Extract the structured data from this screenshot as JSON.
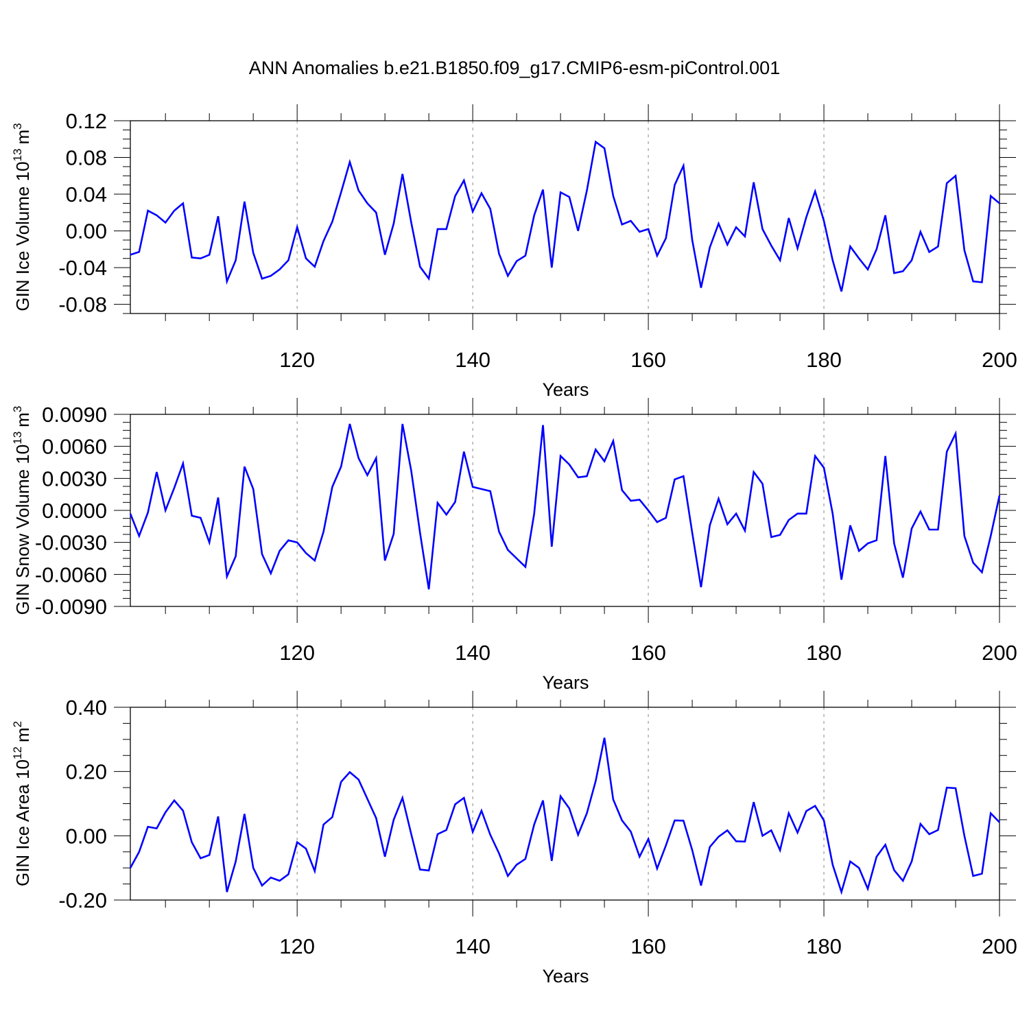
{
  "figure": {
    "title": "ANN Anomalies b.e21.B1850.f09_g17.CMIP6-esm-piControl.001"
  },
  "chart_data": [
    {
      "type": "line",
      "xlabel": "Years",
      "ylabel": "GIN Ice Volume 10",
      "ylabel_exponent": "13",
      "ylabel_unit": "m",
      "ylabel_unit_exponent": "3",
      "xlim": [
        101,
        200
      ],
      "ylim": [
        -0.09,
        0.12
      ],
      "x_tick_values": [
        120,
        140,
        160,
        180,
        200
      ],
      "x_tick_labels": [
        "120",
        "140",
        "160",
        "180",
        "200"
      ],
      "y_tick_values": [
        0.12,
        0.08,
        0.04,
        0.0,
        -0.04,
        -0.08
      ],
      "y_tick_labels": [
        "0.12",
        "0.08",
        "0.04",
        "0.00",
        "-0.04",
        "-0.08"
      ],
      "grid": "vertical dashed at major x ticks",
      "line_color": "#0000ff",
      "x_start": 101,
      "values": [
        -0.026,
        -0.023,
        0.022,
        0.017,
        0.009,
        0.022,
        0.03,
        -0.029,
        -0.03,
        -0.026,
        0.016,
        -0.055,
        -0.032,
        0.032,
        -0.024,
        -0.052,
        -0.049,
        -0.042,
        -0.032,
        0.004,
        -0.03,
        -0.039,
        -0.011,
        0.01,
        0.042,
        0.075,
        0.044,
        0.03,
        0.02,
        -0.026,
        0.008,
        0.062,
        0.009,
        -0.039,
        -0.052,
        0.002,
        0.002,
        0.038,
        0.055,
        0.021,
        0.041,
        0.024,
        -0.025,
        -0.049,
        -0.033,
        -0.027,
        0.017,
        0.045,
        -0.04,
        0.042,
        0.037,
        0.0,
        0.044,
        0.097,
        0.09,
        0.038,
        0.007,
        0.011,
        -0.001,
        0.002,
        -0.027,
        -0.008,
        0.05,
        0.071,
        -0.01,
        -0.062,
        -0.018,
        0.008,
        -0.015,
        0.004,
        -0.006,
        0.053,
        0.002,
        -0.016,
        -0.032,
        0.014,
        -0.019,
        0.015,
        0.043,
        0.011,
        -0.032,
        -0.066,
        -0.017,
        -0.03,
        -0.042,
        -0.02,
        0.017,
        -0.046,
        -0.044,
        -0.032,
        -0.001,
        -0.023,
        -0.017,
        0.052,
        0.06,
        -0.021,
        -0.055,
        -0.056,
        0.038,
        0.03
      ]
    },
    {
      "type": "line",
      "xlabel": "Years",
      "ylabel": "GIN Snow Volume 10",
      "ylabel_exponent": "13",
      "ylabel_unit": "m",
      "ylabel_unit_exponent": "3",
      "xlim": [
        101,
        200
      ],
      "ylim": [
        -0.009,
        0.009
      ],
      "x_tick_values": [
        120,
        140,
        160,
        180,
        200
      ],
      "x_tick_labels": [
        "120",
        "140",
        "160",
        "180",
        "200"
      ],
      "y_tick_values": [
        0.009,
        0.006,
        0.003,
        0.0,
        -0.003,
        -0.006,
        -0.009
      ],
      "y_tick_labels": [
        "0.0090",
        "0.0060",
        "0.0030",
        "0.0000",
        "-0.0030",
        "-0.0060",
        "-0.0090"
      ],
      "grid": "vertical dashed at major x ticks",
      "line_color": "#0000ff",
      "x_start": 101,
      "values": [
        -0.0003,
        -0.0024,
        -0.0002,
        0.0036,
        0.0,
        0.0021,
        0.0044,
        -0.0005,
        -0.0007,
        -0.003,
        0.0012,
        -0.0062,
        -0.0043,
        0.0041,
        0.002,
        -0.0041,
        -0.0059,
        -0.0038,
        -0.0028,
        -0.003,
        -0.004,
        -0.0047,
        -0.002,
        0.0022,
        0.0041,
        0.0081,
        0.0049,
        0.0033,
        0.0049,
        -0.0047,
        -0.0022,
        0.0081,
        0.0037,
        -0.0021,
        -0.0074,
        0.0007,
        -0.0004,
        0.0008,
        0.0055,
        0.0022,
        0.002,
        0.0018,
        -0.002,
        -0.0037,
        -0.0045,
        -0.0053,
        -0.0003,
        0.008,
        -0.0034,
        0.0051,
        0.0043,
        0.0031,
        0.0032,
        0.0057,
        0.0046,
        0.0065,
        0.0019,
        0.0009,
        0.001,
        0.0,
        -0.0011,
        -0.0007,
        0.0029,
        0.0032,
        -0.0021,
        -0.0072,
        -0.0014,
        0.0011,
        -0.0013,
        -0.0003,
        -0.0019,
        0.0036,
        0.0025,
        -0.0025,
        -0.0023,
        -0.0009,
        -0.0003,
        -0.0003,
        0.0051,
        0.004,
        -0.0003,
        -0.0065,
        -0.0014,
        -0.0038,
        -0.0031,
        -0.0028,
        0.0051,
        -0.0031,
        -0.0063,
        -0.0017,
        -0.0001,
        -0.0018,
        -0.0018,
        0.0055,
        0.0072,
        -0.0024,
        -0.0049,
        -0.0058,
        -0.0024,
        0.0014
      ]
    },
    {
      "type": "line",
      "xlabel": "Years",
      "ylabel": "GIN Ice Area 10",
      "ylabel_exponent": "12",
      "ylabel_unit": "m",
      "ylabel_unit_exponent": "2",
      "xlim": [
        101,
        200
      ],
      "ylim": [
        -0.2,
        0.4
      ],
      "x_tick_values": [
        120,
        140,
        160,
        180,
        200
      ],
      "x_tick_labels": [
        "120",
        "140",
        "160",
        "180",
        "200"
      ],
      "y_tick_values": [
        0.4,
        0.2,
        0.0,
        -0.2
      ],
      "y_tick_labels": [
        "0.40",
        "0.20",
        "0.00",
        "-0.20"
      ],
      "grid": "vertical dashed at major x ticks",
      "line_color": "#0000ff",
      "x_start": 101,
      "values": [
        -0.1,
        -0.05,
        0.028,
        0.023,
        0.073,
        0.11,
        0.078,
        -0.02,
        -0.07,
        -0.06,
        0.06,
        -0.175,
        -0.08,
        0.068,
        -0.1,
        -0.155,
        -0.13,
        -0.14,
        -0.12,
        -0.02,
        -0.04,
        -0.11,
        0.035,
        0.058,
        0.168,
        0.198,
        0.175,
        0.115,
        0.055,
        -0.065,
        0.05,
        0.118,
        0.005,
        -0.105,
        -0.108,
        0.005,
        0.018,
        0.098,
        0.118,
        0.012,
        0.078,
        0.003,
        -0.055,
        -0.125,
        -0.09,
        -0.072,
        0.035,
        0.11,
        -0.078,
        0.123,
        0.085,
        0.003,
        0.07,
        0.17,
        0.305,
        0.113,
        0.048,
        0.013,
        -0.065,
        -0.01,
        -0.102,
        -0.03,
        0.048,
        0.047,
        -0.045,
        -0.155,
        -0.035,
        -0.003,
        0.017,
        -0.017,
        -0.018,
        0.105,
        0.0,
        0.017,
        -0.045,
        0.07,
        0.01,
        0.077,
        0.093,
        0.048,
        -0.09,
        -0.175,
        -0.08,
        -0.1,
        -0.165,
        -0.065,
        -0.028,
        -0.107,
        -0.14,
        -0.08,
        0.037,
        0.005,
        0.018,
        0.15,
        0.148,
        0.0,
        -0.125,
        -0.118,
        0.07,
        0.042
      ]
    }
  ]
}
